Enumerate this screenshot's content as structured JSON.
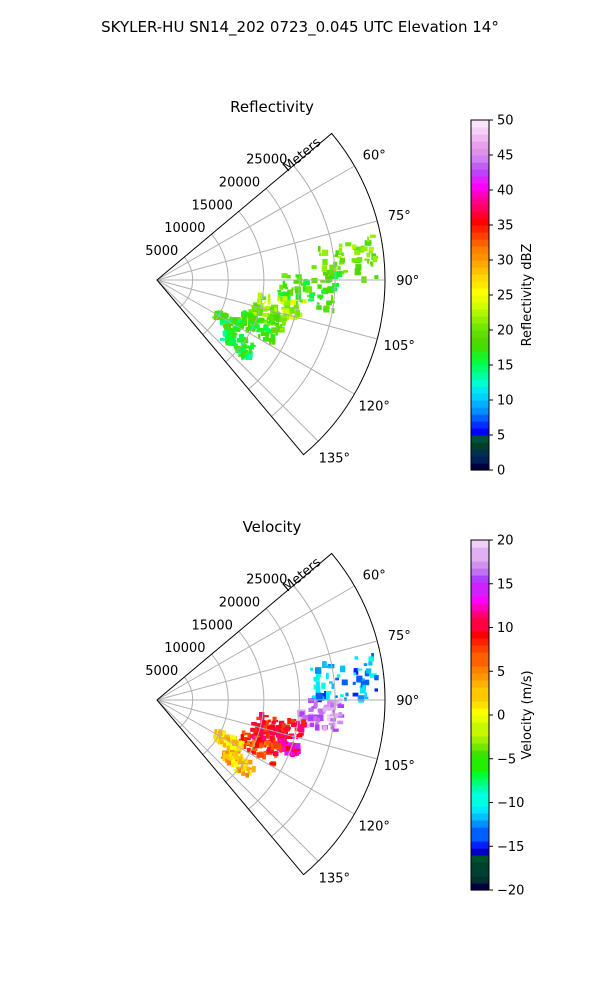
{
  "figure": {
    "suptitle": "SKYLER-HU  SN14_202  0723_0.045 UTC Elevation 14°"
  },
  "chart_data": [
    {
      "type": "polar-sector",
      "title": "Reflectivity",
      "radial_label": "Meters",
      "radial_ticks": [
        5000,
        10000,
        15000,
        20000,
        25000
      ],
      "radial_tick_labels": [
        "5000",
        "10000",
        "15000",
        "20000",
        "25000"
      ],
      "r_max": 32000,
      "angle_range_deg": [
        50,
        140
      ],
      "angle_ticks_deg": [
        60,
        75,
        90,
        105,
        120,
        135
      ],
      "angle_tick_labels": [
        "60°",
        "75°",
        "90°",
        "105°",
        "120°",
        "135°"
      ],
      "grid": true,
      "colorbar": {
        "label": "Reflectivity dBZ",
        "range": [
          0,
          50
        ],
        "ticks": [
          0,
          5,
          10,
          15,
          20,
          25,
          30,
          35,
          40,
          45,
          50
        ],
        "tick_labels": [
          "0",
          "5",
          "10",
          "15",
          "20",
          "25",
          "30",
          "35",
          "40",
          "45",
          "50"
        ]
      },
      "echo_regions": [
        {
          "az_range_deg": [
            78,
            90
          ],
          "r_range_m": [
            22000,
            31000
          ],
          "value": 20
        },
        {
          "az_range_deg": [
            88,
            100
          ],
          "r_range_m": [
            17000,
            26000
          ],
          "value": 18
        },
        {
          "az_range_deg": [
            98,
            106
          ],
          "r_range_m": [
            14000,
            21000
          ],
          "value": 22
        },
        {
          "az_range_deg": [
            104,
            112
          ],
          "r_range_m": [
            14000,
            19000
          ],
          "value": 20
        },
        {
          "az_range_deg": [
            110,
            119
          ],
          "r_range_m": [
            13000,
            19000
          ],
          "value": 17
        },
        {
          "az_range_deg": [
            116,
            124
          ],
          "r_range_m": [
            9500,
            13500
          ],
          "value": 17
        },
        {
          "az_range_deg": [
            124,
            132
          ],
          "r_range_m": [
            12000,
            17000
          ],
          "value": 16
        }
      ]
    },
    {
      "type": "polar-sector",
      "title": "Velocity",
      "radial_label": "Meters",
      "radial_ticks": [
        5000,
        10000,
        15000,
        20000,
        25000
      ],
      "radial_tick_labels": [
        "5000",
        "10000",
        "15000",
        "20000",
        "25000"
      ],
      "r_max": 32000,
      "angle_range_deg": [
        50,
        140
      ],
      "angle_ticks_deg": [
        60,
        75,
        90,
        105,
        120,
        135
      ],
      "angle_tick_labels": [
        "60°",
        "75°",
        "90°",
        "105°",
        "120°",
        "135°"
      ],
      "grid": true,
      "colorbar": {
        "label": "Velocity (m/s)",
        "range": [
          -20,
          20
        ],
        "ticks": [
          -20,
          -15,
          -10,
          -5,
          0,
          5,
          10,
          15,
          20
        ],
        "tick_labels": [
          "−20",
          "−15",
          "−10",
          "−5",
          "0",
          "5",
          "10",
          "15",
          "20"
        ]
      },
      "echo_regions": [
        {
          "az_range_deg": [
            78,
            90
          ],
          "r_range_m": [
            22000,
            31000
          ],
          "value": -12
        },
        {
          "az_range_deg": [
            90,
            100
          ],
          "r_range_m": [
            20000,
            26000
          ],
          "value": 17
        },
        {
          "az_range_deg": [
            98,
            106
          ],
          "r_range_m": [
            14000,
            21000
          ],
          "value": 10
        },
        {
          "az_range_deg": [
            104,
            112
          ],
          "r_range_m": [
            14000,
            19000
          ],
          "value": 10
        },
        {
          "az_range_deg": [
            108,
            112
          ],
          "r_range_m": [
            18000,
            21000
          ],
          "value": 12
        },
        {
          "az_range_deg": [
            110,
            119
          ],
          "r_range_m": [
            13000,
            19000
          ],
          "value": 8
        },
        {
          "az_range_deg": [
            116,
            124
          ],
          "r_range_m": [
            9500,
            13500
          ],
          "value": 2
        },
        {
          "az_range_deg": [
            124,
            132
          ],
          "r_range_m": [
            12000,
            17000
          ],
          "value": 3
        }
      ]
    }
  ]
}
